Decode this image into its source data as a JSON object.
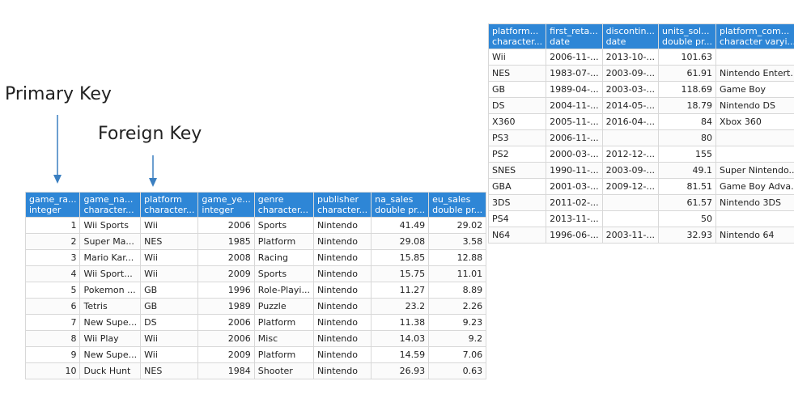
{
  "annotations": {
    "primary_key": "Primary Key",
    "foreign_key": "Foreign Key"
  },
  "games_table": {
    "headers": [
      [
        "game_ra...",
        "integer"
      ],
      [
        "game_na...",
        "character..."
      ],
      [
        "platform",
        "character..."
      ],
      [
        "game_ye...",
        "integer"
      ],
      [
        "genre",
        "character..."
      ],
      [
        "publisher",
        "character..."
      ],
      [
        "na_sales",
        "double pr..."
      ],
      [
        "eu_sales",
        "double pr..."
      ]
    ],
    "rows": [
      [
        "1",
        "Wii Sports",
        "Wii",
        "2006",
        "Sports",
        "Nintendo",
        "41.49",
        "29.02"
      ],
      [
        "2",
        "Super Ma...",
        "NES",
        "1985",
        "Platform",
        "Nintendo",
        "29.08",
        "3.58"
      ],
      [
        "3",
        "Mario Kar...",
        "Wii",
        "2008",
        "Racing",
        "Nintendo",
        "15.85",
        "12.88"
      ],
      [
        "4",
        "Wii Sport...",
        "Wii",
        "2009",
        "Sports",
        "Nintendo",
        "15.75",
        "11.01"
      ],
      [
        "5",
        "Pokemon ...",
        "GB",
        "1996",
        "Role-Playi...",
        "Nintendo",
        "11.27",
        "8.89"
      ],
      [
        "6",
        "Tetris",
        "GB",
        "1989",
        "Puzzle",
        "Nintendo",
        "23.2",
        "2.26"
      ],
      [
        "7",
        "New Supe...",
        "DS",
        "2006",
        "Platform",
        "Nintendo",
        "11.38",
        "9.23"
      ],
      [
        "8",
        "Wii Play",
        "Wii",
        "2006",
        "Misc",
        "Nintendo",
        "14.03",
        "9.2"
      ],
      [
        "9",
        "New Supe...",
        "Wii",
        "2009",
        "Platform",
        "Nintendo",
        "14.59",
        "7.06"
      ],
      [
        "10",
        "Duck Hunt",
        "NES",
        "1984",
        "Shooter",
        "Nintendo",
        "26.93",
        "0.63"
      ]
    ]
  },
  "platforms_table": {
    "headers": [
      [
        "platform...",
        "character..."
      ],
      [
        "first_reta...",
        "date"
      ],
      [
        "discontin...",
        "date"
      ],
      [
        "units_sol...",
        "double pr..."
      ],
      [
        "platform_com...",
        "character varyi..."
      ]
    ],
    "rows": [
      [
        "Wii",
        "2006-11-...",
        "2013-10-...",
        "101.63",
        ""
      ],
      [
        "NES",
        "1983-07-...",
        "2003-09-...",
        "61.91",
        "Nintendo Entert..."
      ],
      [
        "GB",
        "1989-04-...",
        "2003-03-...",
        "118.69",
        "Game Boy"
      ],
      [
        "DS",
        "2004-11-...",
        "2014-05-...",
        "18.79",
        "Nintendo DS"
      ],
      [
        "X360",
        "2005-11-...",
        "2016-04-...",
        "84",
        "Xbox 360"
      ],
      [
        "PS3",
        "2006-11-...",
        "",
        "80",
        ""
      ],
      [
        "PS2",
        "2000-03-...",
        "2012-12-...",
        "155",
        ""
      ],
      [
        "SNES",
        "1990-11-...",
        "2003-09-...",
        "49.1",
        "Super Nintendo..."
      ],
      [
        "GBA",
        "2001-03-...",
        "2009-12-...",
        "81.51",
        "Game Boy Adva..."
      ],
      [
        "3DS",
        "2011-02-...",
        "",
        "61.57",
        "Nintendo 3DS"
      ],
      [
        "PS4",
        "2013-11-...",
        "",
        "50",
        ""
      ],
      [
        "N64",
        "1996-06-...",
        "2003-11-...",
        "32.93",
        "Nintendo 64"
      ]
    ]
  },
  "colors": {
    "header_bg": "#2e86d6",
    "arrow": "#3a7fc1"
  }
}
